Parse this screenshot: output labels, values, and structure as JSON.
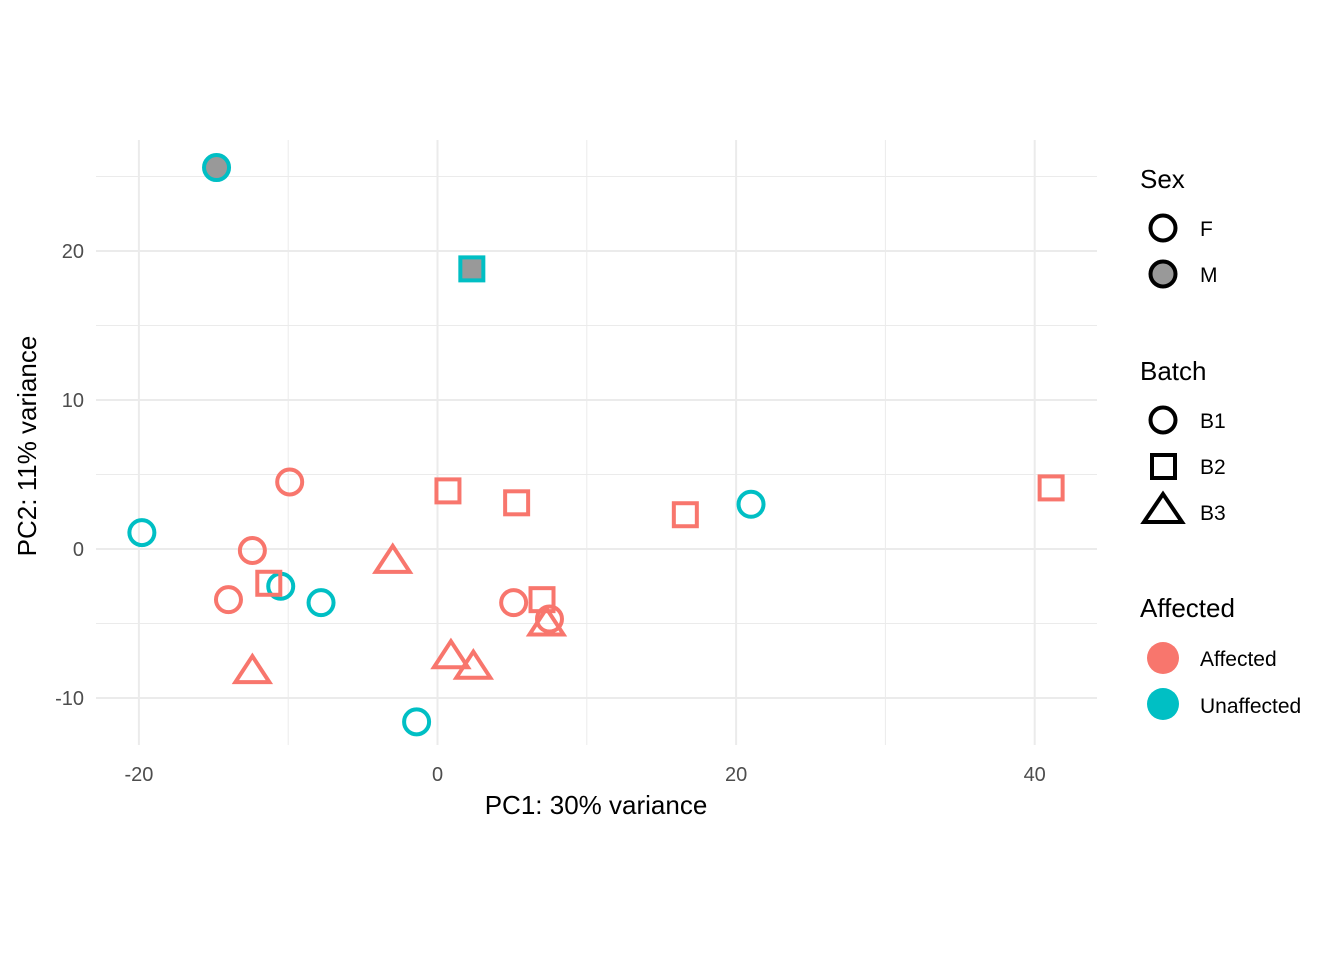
{
  "chart_data": {
    "type": "scatter",
    "xlabel": "PC1: 30% variance",
    "ylabel": "PC2: 11% variance",
    "xlim": [
      -24,
      44
    ],
    "ylim": [
      -13.5,
      27
    ],
    "x_ticks": [
      -20,
      0,
      20,
      40
    ],
    "x_tick_labels": [
      "-20",
      "0",
      "20",
      "40"
    ],
    "y_ticks": [
      -10,
      0,
      10,
      20
    ],
    "y_tick_labels": [
      "-10",
      "0",
      "10",
      "20"
    ],
    "grid": true,
    "legend_position": "right",
    "colors": {
      "Affected": "#F8766D",
      "Unaffected": "#00BFC4",
      "male_fill": "#999999",
      "grid": "#EBEBEB"
    },
    "legends": [
      {
        "title": "Sex",
        "items": [
          {
            "label": "F",
            "shape": "circle",
            "fill": "none"
          },
          {
            "label": "M",
            "shape": "circle",
            "fill": "#999999"
          }
        ]
      },
      {
        "title": "Batch",
        "items": [
          {
            "label": "B1",
            "shape": "circle"
          },
          {
            "label": "B2",
            "shape": "square"
          },
          {
            "label": "B3",
            "shape": "triangle"
          }
        ]
      },
      {
        "title": "Affected",
        "items": [
          {
            "label": "Affected",
            "color": "#F8766D"
          },
          {
            "label": "Unaffected",
            "color": "#00BFC4"
          }
        ]
      }
    ],
    "points": [
      {
        "x": -14.8,
        "y": 25.6,
        "sex": "M",
        "batch": "B1",
        "affected": "Unaffected"
      },
      {
        "x": 2.3,
        "y": 18.8,
        "sex": "M",
        "batch": "B2",
        "affected": "Unaffected"
      },
      {
        "x": -19.8,
        "y": 1.1,
        "sex": "F",
        "batch": "B1",
        "affected": "Unaffected"
      },
      {
        "x": -10.5,
        "y": -2.5,
        "sex": "F",
        "batch": "B1",
        "affected": "Unaffected"
      },
      {
        "x": -7.8,
        "y": -3.6,
        "sex": "F",
        "batch": "B1",
        "affected": "Unaffected"
      },
      {
        "x": -1.4,
        "y": -11.6,
        "sex": "F",
        "batch": "B1",
        "affected": "Unaffected"
      },
      {
        "x": 21.0,
        "y": 3.0,
        "sex": "F",
        "batch": "B1",
        "affected": "Unaffected"
      },
      {
        "x": -9.9,
        "y": 4.5,
        "sex": "F",
        "batch": "B1",
        "affected": "Affected"
      },
      {
        "x": -12.4,
        "y": -0.1,
        "sex": "F",
        "batch": "B1",
        "affected": "Affected"
      },
      {
        "x": -14.0,
        "y": -3.4,
        "sex": "F",
        "batch": "B1",
        "affected": "Affected"
      },
      {
        "x": 5.1,
        "y": -3.6,
        "sex": "F",
        "batch": "B1",
        "affected": "Affected"
      },
      {
        "x": 7.5,
        "y": -4.7,
        "sex": "F",
        "batch": "B1",
        "affected": "Affected"
      },
      {
        "x": -11.3,
        "y": -2.3,
        "sex": "F",
        "batch": "B2",
        "affected": "Affected"
      },
      {
        "x": 0.7,
        "y": 3.9,
        "sex": "F",
        "batch": "B2",
        "affected": "Affected"
      },
      {
        "x": 5.3,
        "y": 3.1,
        "sex": "F",
        "batch": "B2",
        "affected": "Affected"
      },
      {
        "x": 7.0,
        "y": -3.4,
        "sex": "F",
        "batch": "B2",
        "affected": "Affected"
      },
      {
        "x": 16.6,
        "y": 2.3,
        "sex": "F",
        "batch": "B2",
        "affected": "Affected"
      },
      {
        "x": 41.1,
        "y": 4.1,
        "sex": "F",
        "batch": "B2",
        "affected": "Affected"
      },
      {
        "x": -3.0,
        "y": -0.8,
        "sex": "F",
        "batch": "B3",
        "affected": "Affected"
      },
      {
        "x": -12.4,
        "y": -8.2,
        "sex": "F",
        "batch": "B3",
        "affected": "Affected"
      },
      {
        "x": 0.9,
        "y": -7.2,
        "sex": "F",
        "batch": "B3",
        "affected": "Affected"
      },
      {
        "x": 2.4,
        "y": -7.9,
        "sex": "F",
        "batch": "B3",
        "affected": "Affected"
      },
      {
        "x": 7.3,
        "y": -5.0,
        "sex": "F",
        "batch": "B3",
        "affected": "Affected"
      }
    ]
  }
}
